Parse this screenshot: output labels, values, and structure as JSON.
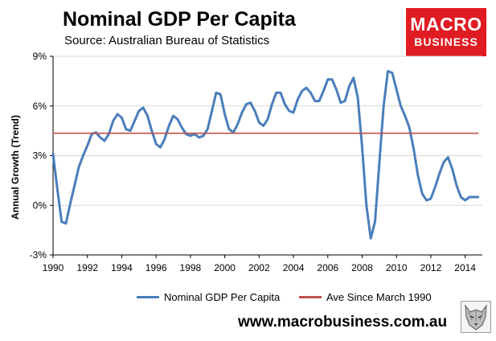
{
  "chart_data": {
    "type": "line",
    "title": "Nominal GDP Per Capita",
    "subtitle": "Source: Australian Bureau of Statistics",
    "ylabel": "Annual Growth (Trend)",
    "xlabel": "",
    "xlim": [
      1990,
      2015
    ],
    "ylim": [
      -3,
      9
    ],
    "x_ticks": [
      1990,
      1992,
      1994,
      1996,
      1998,
      2000,
      2002,
      2004,
      2006,
      2008,
      2010,
      2012,
      2014
    ],
    "y_ticks": [
      {
        "value": -3,
        "label": "-3%"
      },
      {
        "value": 0,
        "label": "0%"
      },
      {
        "value": 3,
        "label": "3%"
      },
      {
        "value": 6,
        "label": "6%"
      },
      {
        "value": 9,
        "label": "9%"
      }
    ],
    "legend_position": "bottom",
    "series": [
      {
        "name": "Nominal GDP Per Capita",
        "color": "#4a7ebb",
        "x": [
          1990,
          1990.25,
          1990.5,
          1990.75,
          1991,
          1991.25,
          1991.5,
          1991.75,
          1992,
          1992.25,
          1992.5,
          1992.75,
          1993,
          1993.25,
          1993.5,
          1993.75,
          1994,
          1994.25,
          1994.5,
          1994.75,
          1995,
          1995.25,
          1995.5,
          1995.75,
          1996,
          1996.25,
          1996.5,
          1996.75,
          1997,
          1997.25,
          1997.5,
          1997.75,
          1998,
          1998.25,
          1998.5,
          1998.75,
          1999,
          1999.25,
          1999.5,
          1999.75,
          2000,
          2000.25,
          2000.5,
          2000.75,
          2001,
          2001.25,
          2001.5,
          2001.75,
          2002,
          2002.25,
          2002.5,
          2002.75,
          2003,
          2003.25,
          2003.5,
          2003.75,
          2004,
          2004.25,
          2004.5,
          2004.75,
          2005,
          2005.25,
          2005.5,
          2005.75,
          2006,
          2006.25,
          2006.5,
          2006.75,
          2007,
          2007.25,
          2007.5,
          2007.75,
          2008,
          2008.25,
          2008.5,
          2008.75,
          2009,
          2009.25,
          2009.5,
          2009.75,
          2010,
          2010.25,
          2010.5,
          2010.75,
          2011,
          2011.25,
          2011.5,
          2011.75,
          2012,
          2012.25,
          2012.5,
          2012.75,
          2013,
          2013.25,
          2013.5,
          2013.75,
          2014,
          2014.25,
          2014.5,
          2014.75
        ],
        "values": [
          3.1,
          1.0,
          -1.0,
          -1.1,
          0.1,
          1.2,
          2.3,
          3.0,
          3.6,
          4.3,
          4.4,
          4.1,
          3.9,
          4.3,
          5.1,
          5.5,
          5.3,
          4.6,
          4.5,
          5.1,
          5.7,
          5.9,
          5.4,
          4.5,
          3.7,
          3.5,
          4.0,
          4.8,
          5.4,
          5.2,
          4.7,
          4.3,
          4.2,
          4.3,
          4.1,
          4.2,
          4.6,
          5.7,
          6.8,
          6.7,
          5.5,
          4.6,
          4.4,
          4.9,
          5.6,
          6.1,
          6.2,
          5.7,
          5.0,
          4.8,
          5.2,
          6.1,
          6.8,
          6.8,
          6.1,
          5.7,
          5.6,
          6.4,
          6.9,
          7.1,
          6.8,
          6.3,
          6.3,
          6.9,
          7.6,
          7.6,
          7.0,
          6.2,
          6.3,
          7.2,
          7.7,
          6.5,
          3.5,
          0.0,
          -2.0,
          -1.0,
          2.5,
          6.0,
          8.1,
          8.0,
          7.0,
          6.0,
          5.4,
          4.7,
          3.4,
          1.8,
          0.7,
          0.3,
          0.4,
          1.1,
          1.9,
          2.6,
          2.9,
          2.2,
          1.2,
          0.5,
          0.3,
          0.5,
          0.5,
          0.5
        ]
      },
      {
        "name": "Ave Since March 1990",
        "color": "#c0504d",
        "x": [
          1990,
          2014.75
        ],
        "values": [
          4.35,
          4.35
        ]
      }
    ]
  },
  "branding": {
    "logo_line1": "MACRO",
    "logo_line2": "BUSINESS",
    "logo_color": "#e01b22",
    "website": "www.macrobusiness.com.au"
  }
}
